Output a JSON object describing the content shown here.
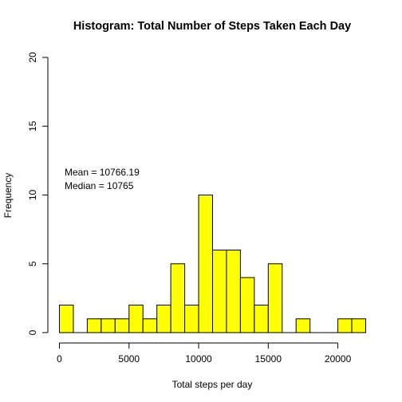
{
  "chart_data": {
    "type": "bar",
    "title": "Histogram: Total Number of Steps Taken Each Day",
    "xlabel": "Total steps per day",
    "ylabel": "Frequency",
    "bin_width": 1000,
    "bins": [
      {
        "start": 0,
        "end": 1000,
        "count": 2
      },
      {
        "start": 1000,
        "end": 2000,
        "count": 0
      },
      {
        "start": 2000,
        "end": 3000,
        "count": 1
      },
      {
        "start": 3000,
        "end": 4000,
        "count": 1
      },
      {
        "start": 4000,
        "end": 5000,
        "count": 1
      },
      {
        "start": 5000,
        "end": 6000,
        "count": 2
      },
      {
        "start": 6000,
        "end": 7000,
        "count": 1
      },
      {
        "start": 7000,
        "end": 8000,
        "count": 2
      },
      {
        "start": 8000,
        "end": 9000,
        "count": 5
      },
      {
        "start": 9000,
        "end": 10000,
        "count": 2
      },
      {
        "start": 10000,
        "end": 11000,
        "count": 10
      },
      {
        "start": 11000,
        "end": 12000,
        "count": 6
      },
      {
        "start": 12000,
        "end": 13000,
        "count": 6
      },
      {
        "start": 13000,
        "end": 14000,
        "count": 4
      },
      {
        "start": 14000,
        "end": 15000,
        "count": 2
      },
      {
        "start": 15000,
        "end": 16000,
        "count": 5
      },
      {
        "start": 16000,
        "end": 17000,
        "count": 0
      },
      {
        "start": 17000,
        "end": 18000,
        "count": 1
      },
      {
        "start": 18000,
        "end": 19000,
        "count": 0
      },
      {
        "start": 19000,
        "end": 20000,
        "count": 0
      },
      {
        "start": 20000,
        "end": 21000,
        "count": 1
      },
      {
        "start": 21000,
        "end": 22000,
        "count": 1
      }
    ],
    "xlim": [
      0,
      22000
    ],
    "ylim": [
      0,
      20
    ],
    "x_ticks": [
      0,
      5000,
      10000,
      15000,
      20000
    ],
    "y_ticks": [
      0,
      5,
      10,
      15,
      20
    ],
    "bar_color": "#ffff00",
    "bar_edge_color": "#000000",
    "grid": false,
    "annotations": [
      "Mean = 10766.19",
      "Median = 10765"
    ]
  }
}
